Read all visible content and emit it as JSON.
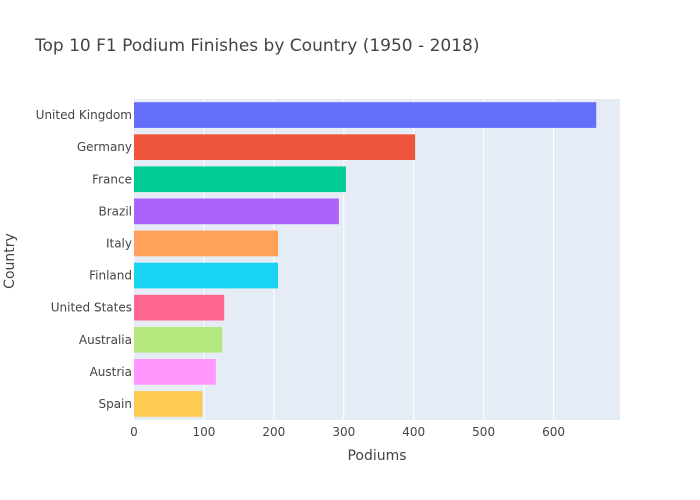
{
  "chart_data": {
    "type": "bar",
    "orientation": "horizontal",
    "title": "Top 10 F1 Podium Finishes by Country (1950 - 2018)",
    "xlabel": "Podiums",
    "ylabel": "Country",
    "xlim": [
      0,
      695
    ],
    "x_ticks": [
      0,
      100,
      200,
      300,
      400,
      500,
      600
    ],
    "grid": true,
    "categories": [
      "United Kingdom",
      "Germany",
      "France",
      "Brazil",
      "Italy",
      "Finland",
      "United States",
      "Australia",
      "Austria",
      "Spain"
    ],
    "values": [
      661,
      402,
      303,
      293,
      206,
      206,
      129,
      126,
      117,
      98
    ],
    "colors": [
      "#636efa",
      "#EF553B",
      "#00cc96",
      "#ab63fa",
      "#FFA15A",
      "#19d3f3",
      "#FF6692",
      "#B6E880",
      "#FF97FF",
      "#FECB52"
    ],
    "plot_background": "#e5ecf6"
  }
}
